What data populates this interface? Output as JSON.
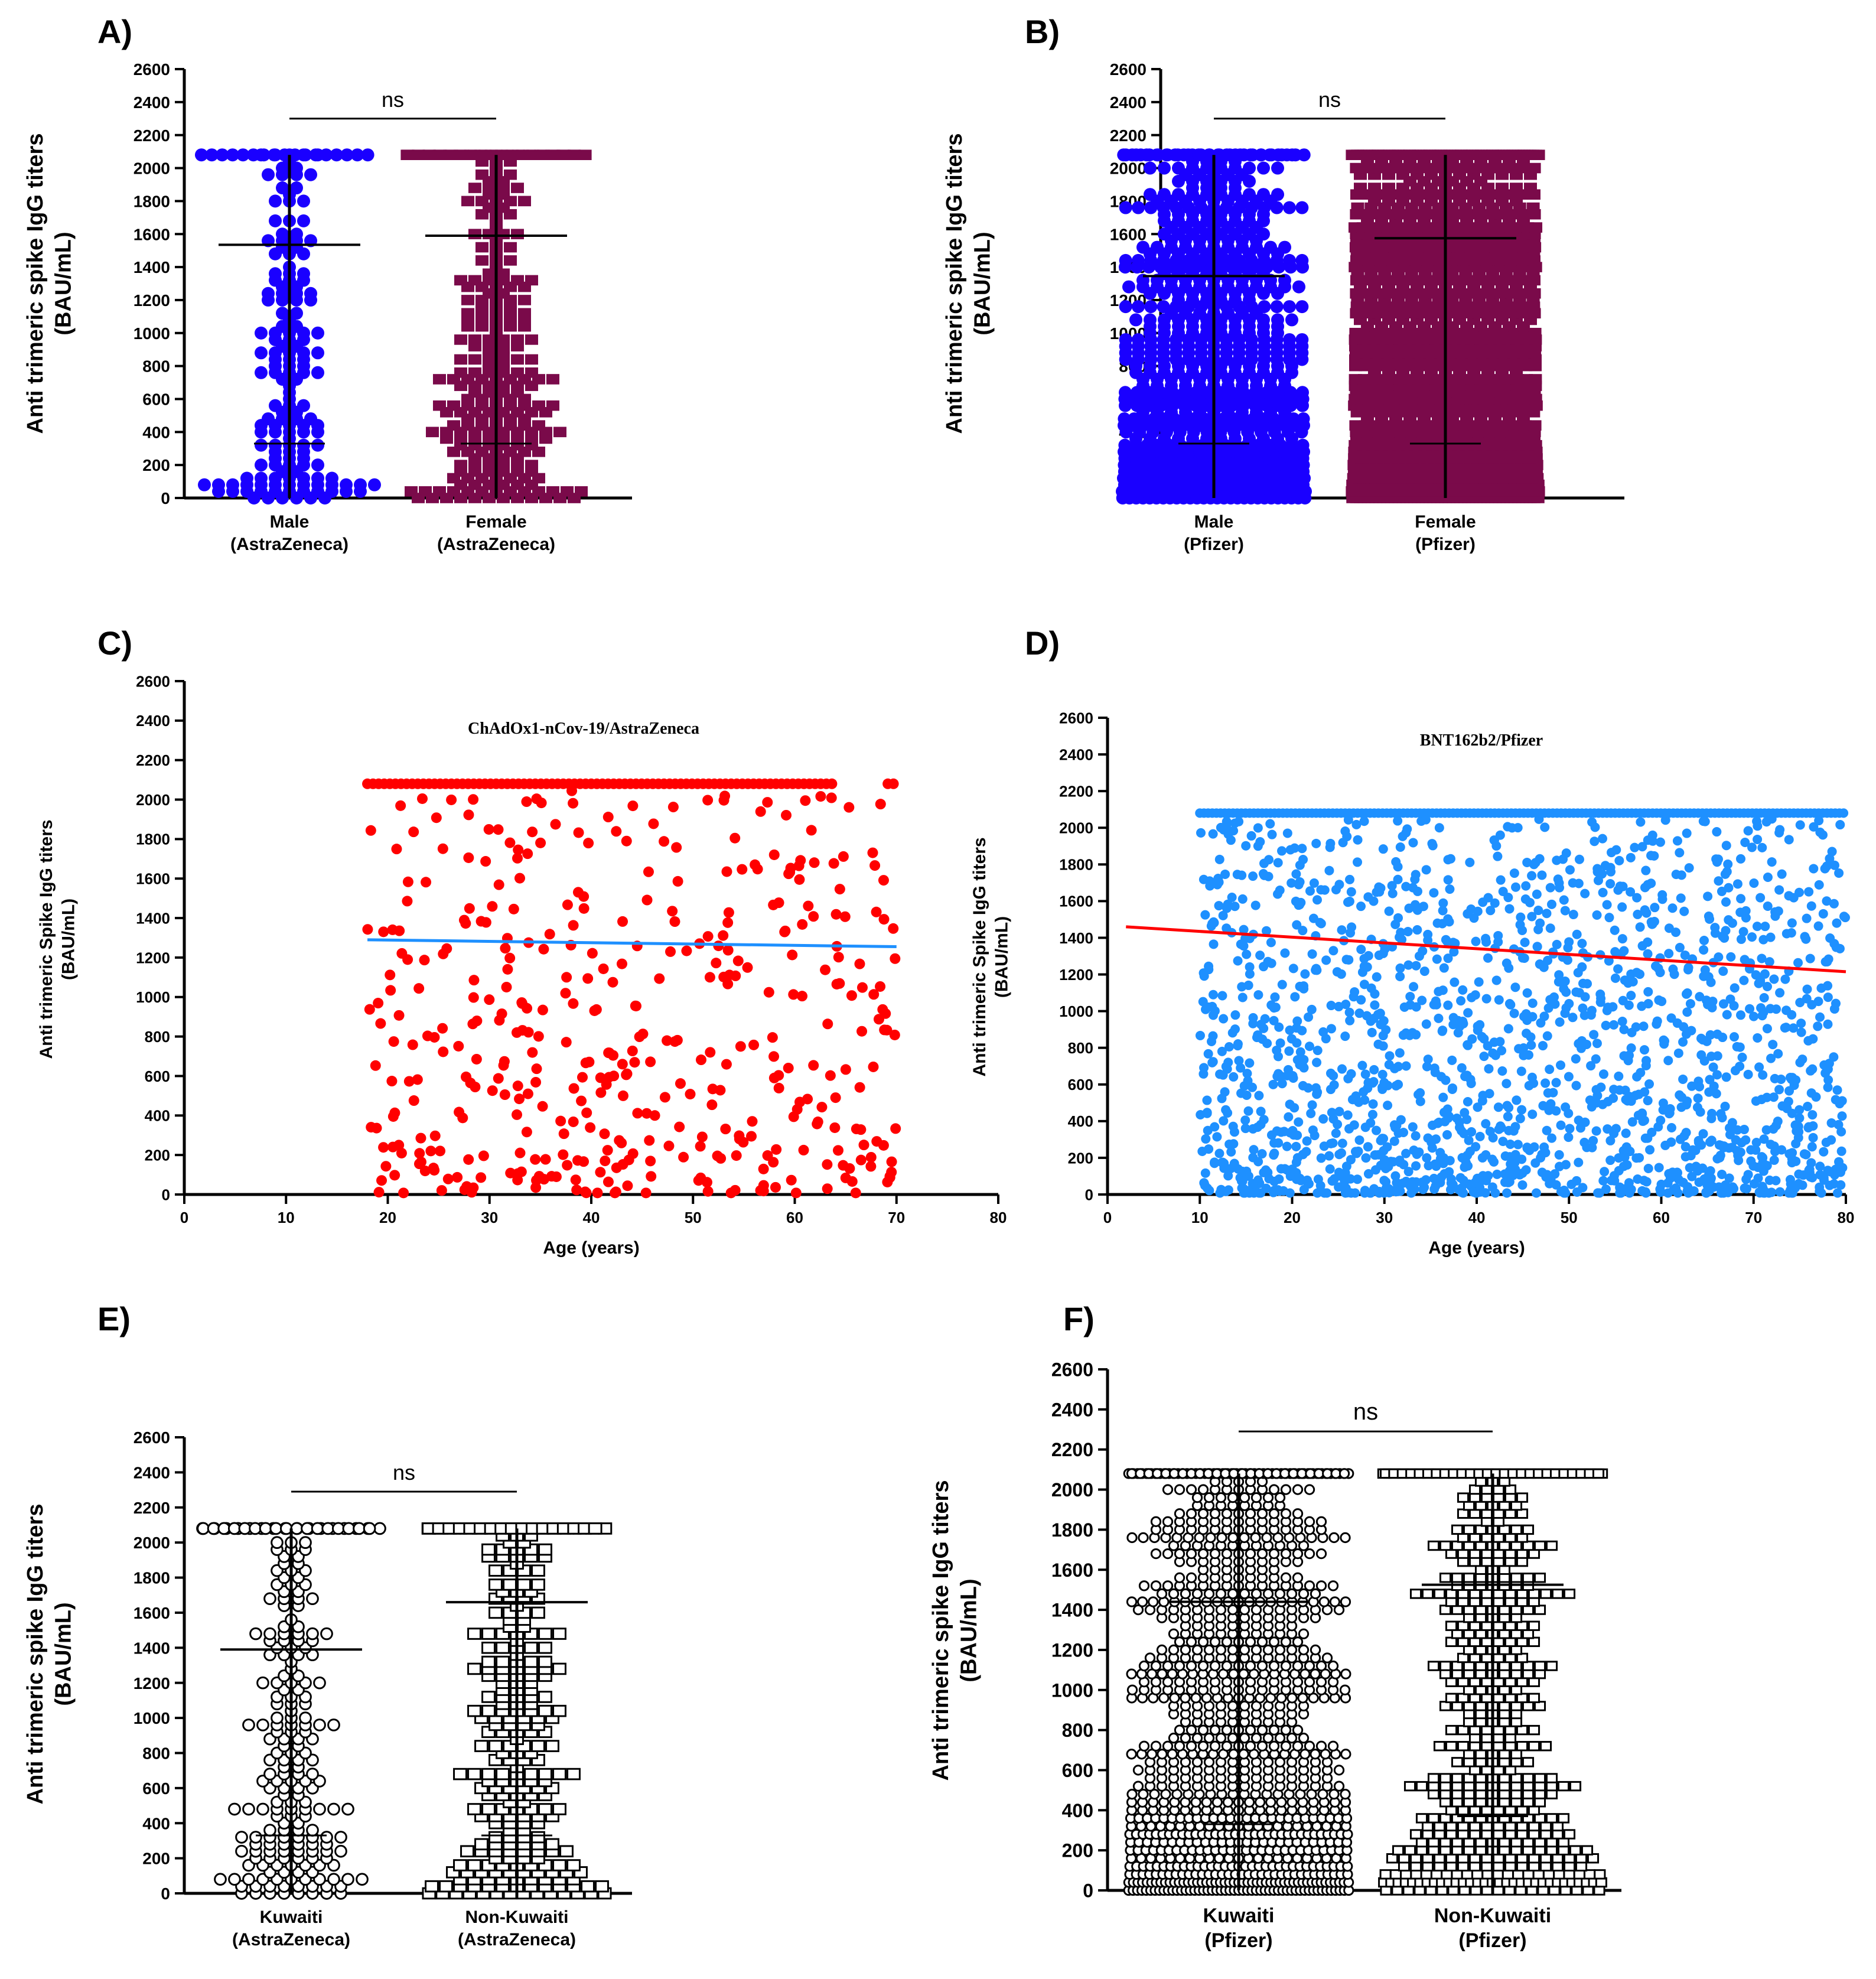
{
  "chart_data": [
    {
      "id": "A",
      "panel_label": "A)",
      "type": "scatter",
      "subtype": "column-dot-plot",
      "ylabel": [
        "Anti trimeric spike IgG titers",
        "(BAU/mL)"
      ],
      "ylim": [
        0,
        2600
      ],
      "yticks": [
        0,
        200,
        400,
        600,
        800,
        1000,
        1200,
        1400,
        1600,
        1800,
        2000,
        2200,
        2400,
        2600
      ],
      "significance": "ns",
      "groups": [
        {
          "label": [
            "Male",
            "(AstraZeneca)"
          ],
          "color": "#1a00ff",
          "marker": "circle-filled",
          "mean": 1535,
          "count": 160,
          "seed": 11
        },
        {
          "label": [
            "Female",
            "(AstraZeneca)"
          ],
          "color": "#7a0a4a",
          "marker": "square-filled",
          "mean": 1590,
          "count": 260,
          "seed": 12
        }
      ]
    },
    {
      "id": "B",
      "panel_label": "B)",
      "type": "scatter",
      "subtype": "column-dot-plot",
      "ylabel": [
        "Anti trimeric spike IgG titers",
        "(BAU/mL)"
      ],
      "ylim": [
        0,
        2600
      ],
      "yticks": [
        0,
        200,
        400,
        600,
        800,
        1000,
        1200,
        1400,
        1600,
        1800,
        2000,
        2200,
        2400,
        2600
      ],
      "significance": "ns",
      "groups": [
        {
          "label": [
            "Male",
            "(Pfizer)"
          ],
          "color": "#1a00ff",
          "marker": "circle-filled",
          "mean": 1345,
          "count": 700,
          "seed": 21
        },
        {
          "label": [
            "Female",
            "(Pfizer)"
          ],
          "color": "#7a0a4a",
          "marker": "square-filled",
          "mean": 1575,
          "count": 1100,
          "seed": 22
        }
      ]
    },
    {
      "id": "C",
      "panel_label": "C)",
      "type": "scatter",
      "title": "ChAdOx1-nCov-19/AstraZeneca",
      "xlabel": "Age (years)",
      "ylabel": [
        "Anti trimeric Spike IgG titers",
        "(BAU/mL)"
      ],
      "xlim": [
        0,
        80
      ],
      "ylim": [
        0,
        2600
      ],
      "xticks": [
        0,
        10,
        20,
        30,
        40,
        50,
        60,
        70,
        80
      ],
      "yticks": [
        0,
        200,
        400,
        600,
        800,
        1000,
        1200,
        1400,
        1600,
        1800,
        2000,
        2200,
        2400,
        2600
      ],
      "point_color": "#ff0000",
      "age_range": [
        18,
        70
      ],
      "count": 420,
      "saturation_value": 2080,
      "seed": 31,
      "trend_line": {
        "x": [
          18,
          70
        ],
        "y": [
          1290,
          1255
        ],
        "color": "#1e90ff"
      }
    },
    {
      "id": "D",
      "panel_label": "D)",
      "type": "scatter",
      "title": "BNT162b2/Pfizer",
      "xlabel": "Age (years)",
      "ylabel": [
        "Anti trimeric Spike IgG titers",
        "(BAU/mL)"
      ],
      "xlim": [
        0,
        80
      ],
      "ylim": [
        0,
        2600
      ],
      "xticks": [
        0,
        10,
        20,
        30,
        40,
        50,
        60,
        70,
        80
      ],
      "yticks": [
        0,
        200,
        400,
        600,
        800,
        1000,
        1200,
        1400,
        1600,
        1800,
        2000,
        2200,
        2400,
        2600
      ],
      "point_color": "#1e90ff",
      "age_range": [
        10,
        80
      ],
      "count": 1700,
      "saturation_value": 2080,
      "seed": 41,
      "trend_line": {
        "x": [
          2,
          80
        ],
        "y": [
          1460,
          1215
        ],
        "color": "#ff0000"
      }
    },
    {
      "id": "E",
      "panel_label": "E)",
      "type": "scatter",
      "subtype": "column-dot-plot",
      "ylabel": [
        "Anti trimeric spike IgG titers",
        "(BAU/mL)"
      ],
      "ylim": [
        0,
        2600
      ],
      "yticks": [
        0,
        200,
        400,
        600,
        800,
        1000,
        1200,
        1400,
        1600,
        1800,
        2000,
        2200,
        2400,
        2600
      ],
      "significance": "ns",
      "groups": [
        {
          "label": [
            "Kuwaiti",
            "(AstraZeneca)"
          ],
          "color": "#000000",
          "marker": "circle-open",
          "mean": 1390,
          "count": 210,
          "seed": 51
        },
        {
          "label": [
            "Non-Kuwaiti",
            "(AstraZeneca)"
          ],
          "color": "#000000",
          "marker": "square-open",
          "mean": 1660,
          "count": 260,
          "seed": 52
        }
      ]
    },
    {
      "id": "F",
      "panel_label": "F)",
      "type": "scatter",
      "subtype": "column-dot-plot",
      "ylabel": [
        "Anti trimeric spike IgG titers",
        "(BAU/mL)"
      ],
      "ylim": [
        0,
        2600
      ],
      "yticks": [
        0,
        200,
        400,
        600,
        800,
        1000,
        1200,
        1400,
        1600,
        1800,
        2000,
        2200,
        2400,
        2600
      ],
      "significance": "ns",
      "groups": [
        {
          "label": [
            "Kuwaiti",
            "(Pfizer)"
          ],
          "color": "#000000",
          "marker": "circle-open",
          "mean": 1440,
          "count": 1000,
          "seed": 61
        },
        {
          "label": [
            "Non-Kuwaiti",
            "(Pfizer)"
          ],
          "color": "#000000",
          "marker": "square-open",
          "mean": 1525,
          "count": 520,
          "seed": 62
        }
      ]
    }
  ]
}
